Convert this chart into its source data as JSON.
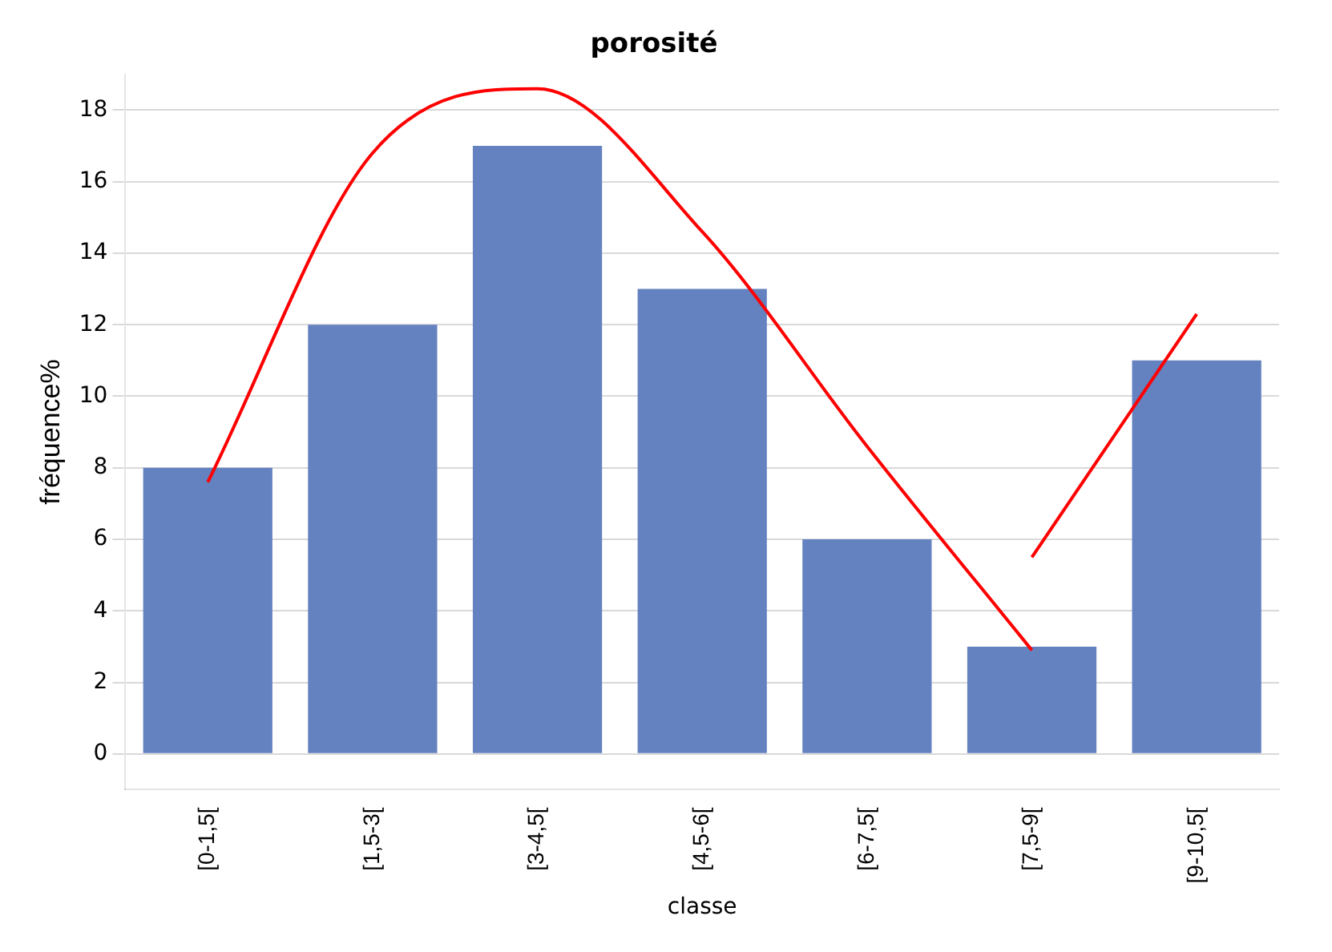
{
  "chart_data": {
    "type": "bar",
    "title": "porosité",
    "xlabel": "classe",
    "ylabel": "fréquence%",
    "categories": [
      "[0-1,5[",
      "[1,5-3[",
      "[3-4,5[",
      "[4,5-6[",
      "[6-7,5[",
      "[7,5-9[",
      "[9-10,5["
    ],
    "series": [
      {
        "color": "#6482c0",
        "values": [
          8,
          12,
          17,
          13,
          6,
          3,
          11
        ]
      },
      {
        "type": "line",
        "color": "#ff0000",
        "values": [
          7.6,
          16.8,
          18.6,
          14.6,
          8.6,
          2.9,
          null
        ]
      },
      {
        "type": "line",
        "color": "#ff0000",
        "values": [
          null,
          null,
          null,
          null,
          null,
          5.5,
          12.3
        ]
      }
    ],
    "ylim": [
      -1,
      19
    ],
    "yticks": [
      0,
      2,
      4,
      6,
      8,
      10,
      12,
      14,
      16,
      18
    ],
    "grid": "y",
    "legend": false,
    "marker": "none"
  }
}
